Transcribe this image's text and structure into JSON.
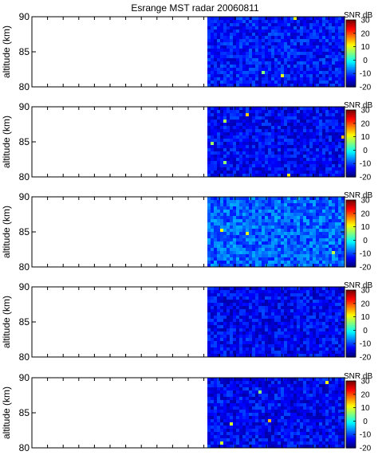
{
  "figure": {
    "title": "Esrange MST radar 20060811"
  },
  "chart_data": [
    {
      "type": "heatmap",
      "panel": 1,
      "ylabel": "altitude (km)",
      "ylim": [
        80,
        90
      ],
      "yticks": [
        80,
        85,
        90
      ],
      "data_start_fraction": 0.56,
      "mean_snr_db": -13,
      "colorbar": {
        "label": "SNR dB",
        "range": [
          -20,
          30
        ],
        "ticks": [
          30,
          20,
          10,
          0,
          -10,
          -20
        ]
      }
    },
    {
      "type": "heatmap",
      "panel": 2,
      "ylabel": "altitude (km)",
      "ylim": [
        80,
        90
      ],
      "yticks": [
        80,
        85,
        90
      ],
      "data_start_fraction": 0.56,
      "mean_snr_db": -14,
      "colorbar": {
        "label": "SNR dB",
        "range": [
          -20,
          30
        ],
        "ticks": [
          30,
          20,
          10,
          0,
          -10,
          -20
        ]
      }
    },
    {
      "type": "heatmap",
      "panel": 3,
      "ylabel": "altitude (km)",
      "ylim": [
        80,
        90
      ],
      "yticks": [
        80,
        85,
        90
      ],
      "data_start_fraction": 0.56,
      "mean_snr_db": -9,
      "colorbar": {
        "label": "SNR dB",
        "range": [
          -20,
          30
        ],
        "ticks": [
          30,
          20,
          10,
          0,
          -10,
          -20
        ]
      }
    },
    {
      "type": "heatmap",
      "panel": 4,
      "ylabel": "altitude (km)",
      "ylim": [
        80,
        90
      ],
      "yticks": [
        80,
        85,
        90
      ],
      "data_start_fraction": 0.56,
      "mean_snr_db": -14,
      "colorbar": {
        "label": "SNR dB",
        "range": [
          -20,
          30
        ],
        "ticks": [
          30,
          20,
          10,
          0,
          -10,
          -20
        ]
      }
    },
    {
      "type": "heatmap",
      "panel": 5,
      "ylabel": "altitude (km)",
      "ylim": [
        80,
        90
      ],
      "yticks": [
        80,
        85,
        90
      ],
      "data_start_fraction": 0.56,
      "mean_snr_db": -14,
      "colorbar": {
        "label": "SNR dB",
        "range": [
          -20,
          30
        ],
        "ticks": [
          30,
          20,
          10,
          0,
          -10,
          -20
        ]
      }
    }
  ]
}
